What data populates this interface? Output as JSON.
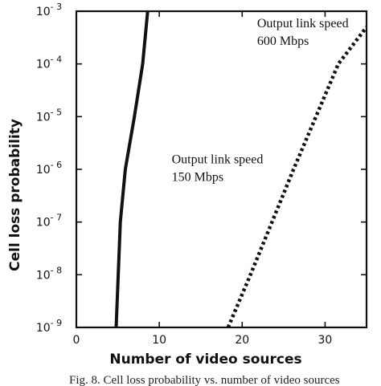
{
  "chart_data": {
    "type": "line",
    "xlabel": "Number of video sources",
    "ylabel": "Cell loss probability",
    "xlim": [
      0,
      35
    ],
    "ylim": [
      1e-09,
      0.001
    ],
    "yscale": "log",
    "x_ticks": [
      0,
      10,
      20,
      30
    ],
    "y_ticks": [
      {
        "value": 1e-09,
        "base": "10",
        "exp": "- 9"
      },
      {
        "value": 1e-08,
        "base": "10",
        "exp": "- 8"
      },
      {
        "value": 1e-07,
        "base": "10",
        "exp": "- 7"
      },
      {
        "value": 1e-06,
        "base": "10",
        "exp": "- 6"
      },
      {
        "value": 1e-05,
        "base": "10",
        "exp": "- 5"
      },
      {
        "value": 0.0001,
        "base": "10",
        "exp": "- 4"
      },
      {
        "value": 0.001,
        "base": "10",
        "exp": "- 3"
      }
    ],
    "grid": false,
    "series": [
      {
        "name": "Output link speed 150 Mbps",
        "style": "solid",
        "color": "#111111",
        "points": [
          [
            4.8,
            1e-09
          ],
          [
            5.3,
            1e-07
          ],
          [
            5.9,
            1e-06
          ],
          [
            7.0,
            1e-05
          ],
          [
            8.0,
            0.0001
          ],
          [
            8.6,
            0.001
          ]
        ]
      },
      {
        "name": "Output link speed 600 Mbps",
        "style": "dotted",
        "color": "#111111",
        "points": [
          [
            18.3,
            1e-09
          ],
          [
            21.0,
            1e-08
          ],
          [
            23.6,
            1e-07
          ],
          [
            26.2,
            1e-06
          ],
          [
            28.9,
            1e-05
          ],
          [
            31.6,
            0.0001
          ],
          [
            35.0,
            0.0005
          ]
        ]
      }
    ],
    "annotations": [
      {
        "lines": [
          "Output link speed",
          "600 Mbps"
        ],
        "x": 21.8,
        "y": 0.0005
      },
      {
        "lines": [
          "Output link speed",
          "150 Mbps"
        ],
        "x": 11.5,
        "y": 1.3e-06
      }
    ]
  },
  "caption": "Fig. 8. Cell loss probability vs. number of video sources"
}
